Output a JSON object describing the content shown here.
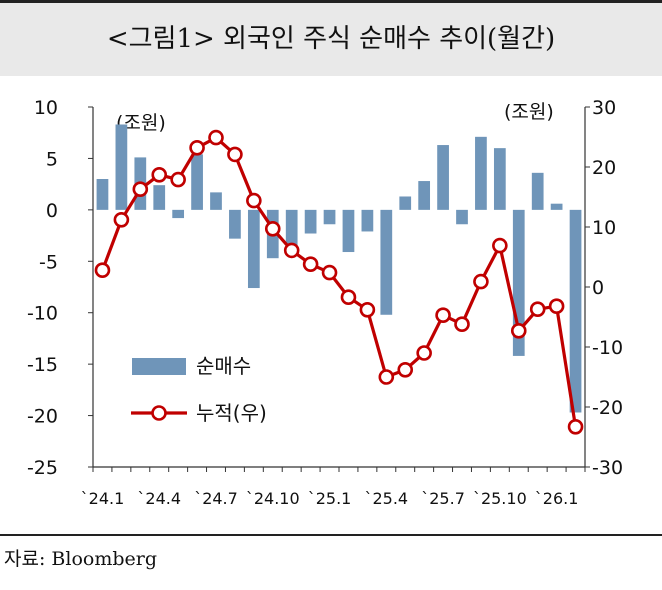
{
  "header": {
    "title": "<그림1>  외국인 주식 순매수 추이(월간)"
  },
  "footer": {
    "source": "자료: Bloomberg"
  },
  "chart_data": {
    "type": "bar+line",
    "title": "<그림1>  외국인 주식 순매수 추이(월간)",
    "left_axis": {
      "unit_label": "(조원)",
      "ylim": [
        -25,
        10
      ],
      "ticks": [
        10,
        5,
        0,
        -5,
        -10,
        -15,
        -20,
        -25
      ]
    },
    "right_axis": {
      "unit_label": "(조원)",
      "ylim": [
        -30,
        30
      ],
      "ticks": [
        30,
        20,
        10,
        0,
        -10,
        -20,
        -30
      ]
    },
    "x_tick_labels": [
      "`24.1",
      "`24.4",
      "`24.7",
      "`24.10",
      "`25.1",
      "`25.4",
      "`25.7",
      "`25.10",
      "`26.1"
    ],
    "x_tick_positions": [
      0,
      3,
      6,
      9,
      12,
      15,
      18,
      21,
      24
    ],
    "months": [
      "2024-01",
      "2024-02",
      "2024-03",
      "2024-04",
      "2024-05",
      "2024-06",
      "2024-07",
      "2024-08",
      "2024-09",
      "2024-10",
      "2024-11",
      "2024-12",
      "2025-01",
      "2025-02",
      "2025-03",
      "2025-04",
      "2025-05",
      "2025-06",
      "2025-07",
      "2025-08",
      "2025-09",
      "2025-10",
      "2025-11",
      "2025-12",
      "2026-01",
      "2026-02"
    ],
    "series": [
      {
        "name": "순매수",
        "kind": "bar",
        "axis": "left",
        "color": "#6f95b9",
        "values": [
          3,
          8.3,
          5.1,
          2.4,
          -0.8,
          5.4,
          1.7,
          -2.8,
          -7.6,
          -4.7,
          -3.6,
          -2.3,
          -1.4,
          -4.1,
          -2.1,
          -10.2,
          1.3,
          2.8,
          6.3,
          -1.4,
          7.1,
          6,
          -14.2,
          3.6,
          0.6,
          -19.7
        ]
      },
      {
        "name": "누적(우)",
        "kind": "line",
        "axis": "right",
        "color": "#c00000",
        "values": [
          2.8,
          11.2,
          16.3,
          18.7,
          17.9,
          23.2,
          24.9,
          22.1,
          14.4,
          9.7,
          6.1,
          3.8,
          2.4,
          -1.7,
          -3.8,
          -15,
          -13.8,
          -11,
          -4.7,
          -6.2,
          0.9,
          6.9,
          -7.3,
          -3.7,
          -3.2,
          -23.3
        ]
      }
    ],
    "legend": [
      {
        "label": "순매수",
        "symbol": "bar"
      },
      {
        "label": "누적(우)",
        "symbol": "line-marker"
      }
    ]
  }
}
